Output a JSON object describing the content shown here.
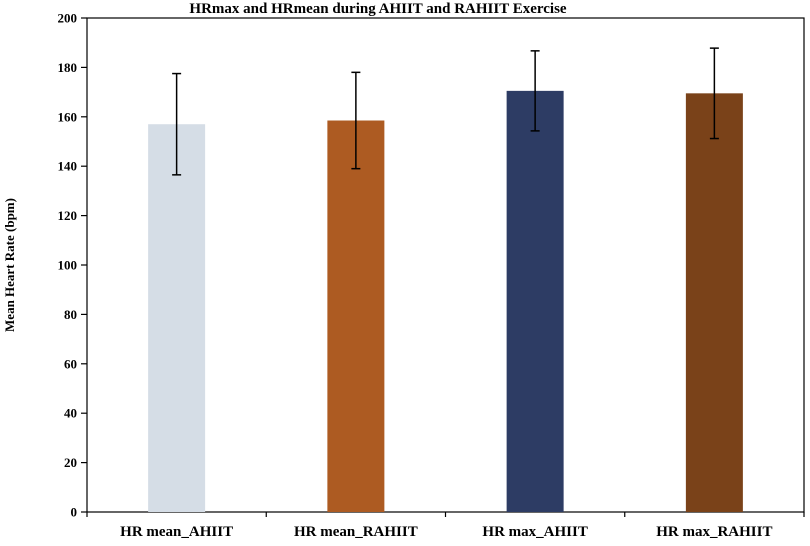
{
  "chart_data": {
    "type": "bar",
    "title": "HRmax and HRmean during AHIIT and RAHIIT Exercise",
    "xlabel": "",
    "ylabel": "Mean Heart Rate (bpm)",
    "ylim": [
      0,
      200
    ],
    "yticks": [
      "0",
      "20",
      "40",
      "60",
      "80",
      "100",
      "120",
      "140",
      "160",
      "180",
      "200"
    ],
    "grid": false,
    "categories": [
      "HR mean_AHIIT",
      "HR mean_RAHIIT",
      "HR max_AHIIT",
      "HR max_RAHIIT"
    ],
    "values": [
      157,
      158.5,
      170.5,
      169.5
    ],
    "error": [
      20.5,
      19.5,
      16.2,
      18.3
    ],
    "colors": [
      "#d5dde6",
      "#ad5b22",
      "#2d3c64",
      "#7a4219"
    ]
  }
}
